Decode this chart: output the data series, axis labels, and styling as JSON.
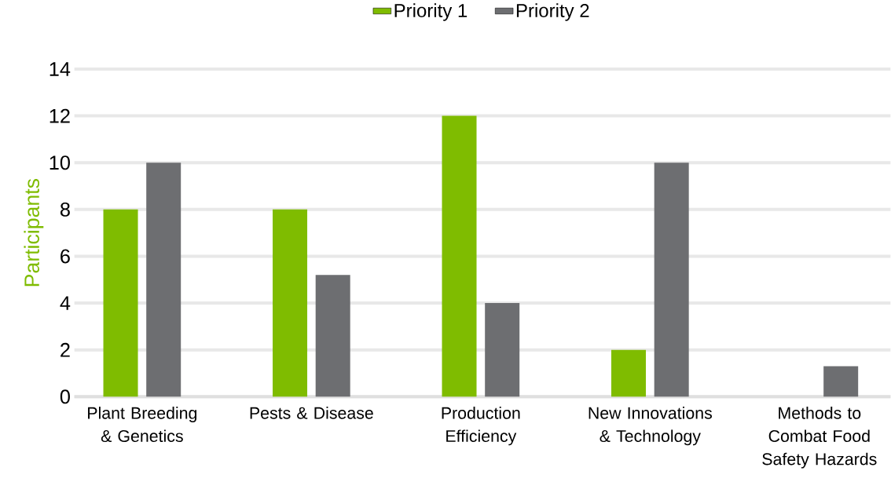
{
  "chart_data": {
    "type": "bar",
    "ylabel": "Participants",
    "categories": [
      "Plant Breeding & Genetics",
      "Pests & Disease",
      "Production Efficiency",
      "New Innovations & Technology",
      "Methods to Combat Food Safety Hazards"
    ],
    "series": [
      {
        "name": "Priority 1",
        "color": "#7fbc00",
        "values": [
          8,
          8,
          12,
          2,
          0
        ]
      },
      {
        "name": "Priority 2",
        "color": "#6d6e71",
        "values": [
          10,
          5.2,
          4,
          10,
          1.3
        ]
      }
    ],
    "ylim": [
      0,
      14
    ],
    "yticks": [
      0,
      2,
      4,
      6,
      8,
      10,
      12,
      14
    ],
    "grid": "y",
    "legend": "top"
  }
}
